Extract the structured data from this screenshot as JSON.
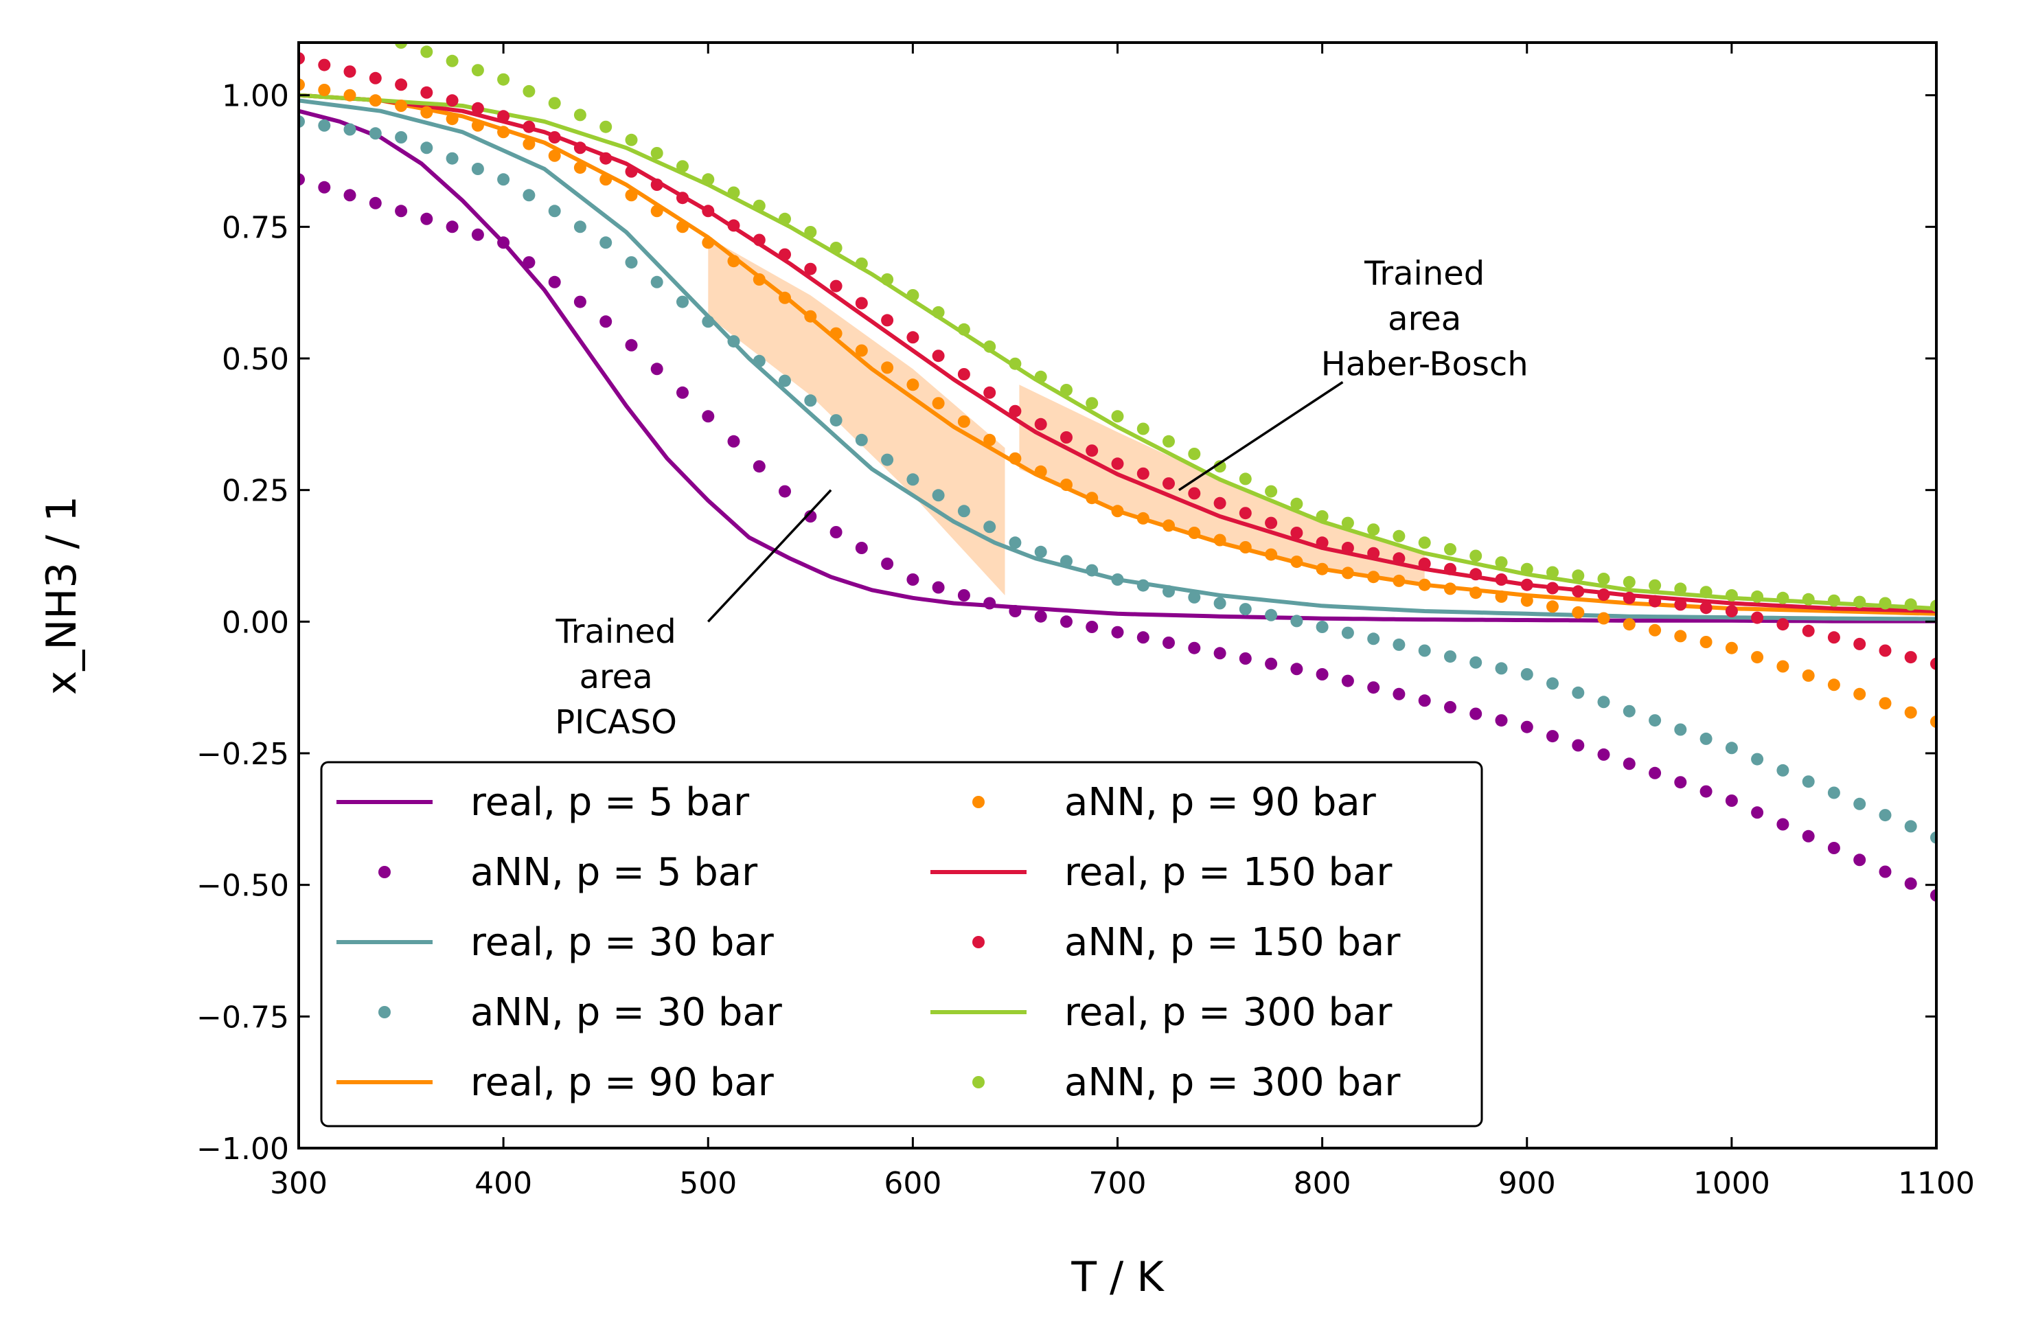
{
  "chart_data": {
    "type": "line",
    "xlabel": "T / K",
    "ylabel": "x_NH3 / 1",
    "xlim": [
      300,
      1100
    ],
    "ylim": [
      -1.0,
      1.1
    ],
    "xticks": [
      300,
      400,
      500,
      600,
      700,
      800,
      900,
      1000,
      1100
    ],
    "xtick_labels": [
      "300",
      "400",
      "500",
      "600",
      "700",
      "800",
      "900",
      "1000",
      "1100"
    ],
    "yticks": [
      -1.0,
      -0.75,
      -0.5,
      -0.25,
      0.0,
      0.25,
      0.5,
      0.75,
      1.0
    ],
    "ytick_labels": [
      "−1.00",
      "−0.75",
      "−0.50",
      "−0.25",
      "0.00",
      "0.25",
      "0.50",
      "0.75",
      "1.00"
    ],
    "grid": false,
    "legend": {
      "placement": "lower-left",
      "columns": 2,
      "entries": [
        {
          "text": "real, p = 5 bar",
          "kind": "line",
          "color": "#8B008B"
        },
        {
          "text": "aNN, p = 5 bar",
          "kind": "dot",
          "color": "#8B008B"
        },
        {
          "text": "real, p = 30 bar",
          "kind": "line",
          "color": "#5F9EA0"
        },
        {
          "text": "aNN, p = 30 bar",
          "kind": "dot",
          "color": "#5F9EA0"
        },
        {
          "text": "real, p = 90 bar",
          "kind": "line",
          "color": "#FF8C00"
        },
        {
          "text": "aNN, p = 90 bar",
          "kind": "dot",
          "color": "#FF8C00"
        },
        {
          "text": "real, p = 150 bar",
          "kind": "line",
          "color": "#DC143C"
        },
        {
          "text": "aNN, p = 150 bar",
          "kind": "dot",
          "color": "#DC143C"
        },
        {
          "text": "real, p = 300 bar",
          "kind": "line",
          "color": "#9ACD32"
        },
        {
          "text": "aNN, p = 300 bar",
          "kind": "dot",
          "color": "#9ACD32"
        }
      ]
    },
    "real_series": [
      {
        "name": "real, p = 5 bar",
        "color": "#8B008B",
        "x": [
          300,
          320,
          340,
          360,
          380,
          400,
          420,
          440,
          460,
          480,
          500,
          520,
          540,
          560,
          580,
          600,
          620,
          640,
          660,
          680,
          700,
          750,
          800,
          850,
          900,
          950,
          1000,
          1050,
          1100
        ],
        "y": [
          0.97,
          0.95,
          0.92,
          0.87,
          0.8,
          0.72,
          0.63,
          0.52,
          0.41,
          0.31,
          0.23,
          0.16,
          0.12,
          0.085,
          0.06,
          0.045,
          0.035,
          0.03,
          0.025,
          0.02,
          0.015,
          0.01,
          0.006,
          0.004,
          0.003,
          0.002,
          0.002,
          0.001,
          0.001
        ]
      },
      {
        "name": "real, p = 30 bar",
        "color": "#5F9EA0",
        "x": [
          300,
          340,
          380,
          420,
          460,
          500,
          520,
          540,
          560,
          580,
          600,
          620,
          640,
          660,
          680,
          700,
          750,
          800,
          850,
          900,
          950,
          1000,
          1050,
          1100
        ],
        "y": [
          0.99,
          0.97,
          0.93,
          0.86,
          0.74,
          0.58,
          0.5,
          0.43,
          0.36,
          0.29,
          0.24,
          0.19,
          0.15,
          0.12,
          0.1,
          0.08,
          0.05,
          0.03,
          0.02,
          0.015,
          0.01,
          0.008,
          0.006,
          0.005
        ]
      },
      {
        "name": "real, p = 90 bar",
        "color": "#FF8C00",
        "x": [
          300,
          340,
          380,
          420,
          460,
          500,
          540,
          580,
          620,
          660,
          700,
          750,
          800,
          850,
          900,
          950,
          1000,
          1050,
          1100
        ],
        "y": [
          1.0,
          0.99,
          0.96,
          0.91,
          0.83,
          0.73,
          0.61,
          0.48,
          0.37,
          0.28,
          0.21,
          0.15,
          0.1,
          0.07,
          0.05,
          0.035,
          0.025,
          0.02,
          0.015
        ]
      },
      {
        "name": "real, p = 150 bar",
        "color": "#DC143C",
        "x": [
          300,
          340,
          380,
          420,
          460,
          500,
          540,
          580,
          620,
          660,
          700,
          750,
          800,
          850,
          900,
          950,
          1000,
          1050,
          1100
        ],
        "y": [
          1.0,
          0.99,
          0.97,
          0.93,
          0.87,
          0.78,
          0.68,
          0.57,
          0.46,
          0.36,
          0.28,
          0.2,
          0.14,
          0.1,
          0.07,
          0.05,
          0.035,
          0.025,
          0.02
        ]
      },
      {
        "name": "real, p = 300 bar",
        "color": "#9ACD32",
        "x": [
          300,
          340,
          380,
          420,
          460,
          500,
          540,
          580,
          620,
          660,
          700,
          750,
          800,
          850,
          900,
          950,
          1000,
          1050,
          1100
        ],
        "y": [
          1.0,
          0.99,
          0.98,
          0.95,
          0.9,
          0.83,
          0.75,
          0.66,
          0.56,
          0.46,
          0.37,
          0.27,
          0.19,
          0.13,
          0.09,
          0.06,
          0.045,
          0.035,
          0.025
        ]
      }
    ],
    "ann_series": [
      {
        "name": "aNN, p = 5 bar",
        "color": "#8B008B",
        "x": [
          300,
          400,
          450,
          500,
          550,
          600,
          650,
          700,
          800,
          900,
          1000,
          1100
        ],
        "y": [
          0.84,
          0.72,
          0.57,
          0.39,
          0.2,
          0.08,
          0.02,
          -0.02,
          -0.1,
          -0.2,
          -0.34,
          -0.52
        ]
      },
      {
        "name": "aNN, p = 30 bar",
        "color": "#5F9EA0",
        "x": [
          300,
          350,
          400,
          450,
          500,
          550,
          600,
          650,
          700,
          800,
          900,
          1000,
          1100
        ],
        "y": [
          0.95,
          0.92,
          0.84,
          0.72,
          0.57,
          0.42,
          0.27,
          0.15,
          0.08,
          -0.01,
          -0.1,
          -0.24,
          -0.41
        ]
      },
      {
        "name": "aNN, p = 90 bar",
        "color": "#FF8C00",
        "x": [
          300,
          350,
          400,
          450,
          500,
          550,
          600,
          650,
          700,
          800,
          900,
          1000,
          1100
        ],
        "y": [
          1.02,
          0.98,
          0.93,
          0.84,
          0.72,
          0.58,
          0.45,
          0.31,
          0.21,
          0.1,
          0.04,
          -0.05,
          -0.19
        ]
      },
      {
        "name": "aNN, p = 150 bar",
        "color": "#DC143C",
        "x": [
          300,
          350,
          400,
          450,
          500,
          550,
          600,
          650,
          700,
          800,
          900,
          1000,
          1100
        ],
        "y": [
          1.07,
          1.02,
          0.96,
          0.88,
          0.78,
          0.67,
          0.54,
          0.4,
          0.3,
          0.15,
          0.07,
          0.02,
          -0.08
        ]
      },
      {
        "name": "aNN, p = 300 bar",
        "color": "#9ACD32",
        "x": [
          300,
          350,
          400,
          450,
          500,
          550,
          600,
          650,
          700,
          800,
          900,
          1000,
          1100
        ],
        "y": [
          1.16,
          1.1,
          1.03,
          0.94,
          0.84,
          0.74,
          0.62,
          0.49,
          0.39,
          0.2,
          0.1,
          0.05,
          0.03
        ]
      }
    ],
    "regions": [
      {
        "name": "picaso-region",
        "color": "#FFDAB9",
        "upper": [
          [
            500,
            0.73
          ],
          [
            550,
            0.62
          ],
          [
            600,
            0.48
          ],
          [
            645,
            0.33
          ]
        ],
        "lower": [
          [
            645,
            0.05
          ],
          [
            600,
            0.24
          ],
          [
            550,
            0.43
          ],
          [
            500,
            0.58
          ]
        ]
      },
      {
        "name": "haber-bosch-region",
        "color": "#FFDAB9",
        "upper": [
          [
            652,
            0.45
          ],
          [
            700,
            0.36
          ],
          [
            750,
            0.27
          ],
          [
            800,
            0.19
          ],
          [
            850,
            0.13
          ]
        ],
        "lower": [
          [
            850,
            0.07
          ],
          [
            800,
            0.1
          ],
          [
            750,
            0.15
          ],
          [
            700,
            0.21
          ],
          [
            652,
            0.29
          ]
        ]
      }
    ],
    "annotations": [
      {
        "lines": [
          "Trained",
          "area",
          "Haber-Bosch"
        ],
        "text_at": [
          850,
          0.64
        ],
        "arrow_from": [
          810,
          0.455
        ],
        "arrow_to": [
          730,
          0.25
        ]
      },
      {
        "lines": [
          "Trained",
          "area",
          "PICASO"
        ],
        "text_at": [
          455,
          -0.04
        ],
        "arrow_from": [
          500,
          0.0
        ],
        "arrow_to": [
          560,
          0.25
        ]
      }
    ]
  }
}
